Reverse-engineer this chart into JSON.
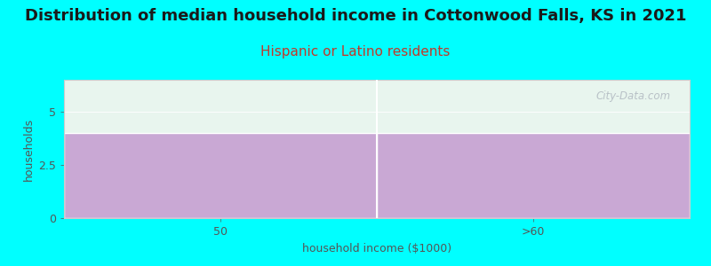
{
  "title": "Distribution of median household income in Cottonwood Falls, KS in 2021",
  "subtitle": "Hispanic or Latino residents",
  "xlabel": "household income ($1000)",
  "ylabel": "households",
  "categories": [
    "50",
    ">60"
  ],
  "values": [
    4.0,
    4.0
  ],
  "ylim": [
    0,
    6.5
  ],
  "yticks": [
    0,
    2.5,
    5
  ],
  "bar_color": "#c9a8d4",
  "bg_color": "#00ffff",
  "plot_bg_color": "#e8f5ee",
  "title_color": "#1a1a1a",
  "subtitle_color": "#c0392b",
  "label_color": "#555555",
  "watermark": "City-Data.com",
  "title_fontsize": 13,
  "subtitle_fontsize": 11,
  "label_fontsize": 9,
  "bar_width": 1.0,
  "separator_color": "#ffffff",
  "spine_color": "#cccccc"
}
